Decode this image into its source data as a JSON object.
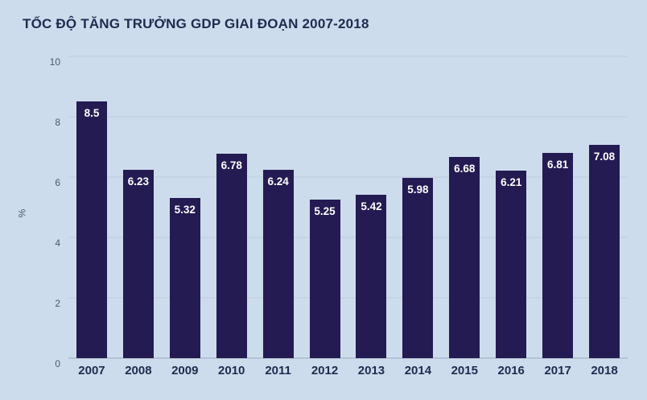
{
  "title": "TỐC ĐỘ TĂNG TRƯỞNG GDP GIAI ĐOẠN 2007-2018",
  "colors": {
    "background": "#cddcec",
    "bar": "#231b52",
    "title": "#1e2b4f",
    "grid": "#bccbdb",
    "axis": "#9aabbd",
    "tick": "#4a5866",
    "bar_label": "#ffffff"
  },
  "chart_data": {
    "type": "bar",
    "title": "TỐC ĐỘ TĂNG TRƯỞNG GDP GIAI ĐOẠN 2007-2018",
    "categories": [
      "2007",
      "2008",
      "2009",
      "2010",
      "2011",
      "2012",
      "2013",
      "2014",
      "2015",
      "2016",
      "2017",
      "2018"
    ],
    "values": [
      8.5,
      6.23,
      5.32,
      6.78,
      6.24,
      5.25,
      5.42,
      5.98,
      6.68,
      6.21,
      6.81,
      7.08
    ],
    "labels": [
      "8.5",
      "6.23",
      "5.32",
      "6.78",
      "6.24",
      "5.25",
      "5.42",
      "5.98",
      "6.68",
      "6.21",
      "6.81",
      "7.08"
    ],
    "xlabel": "",
    "ylabel": "%",
    "ylim": [
      0,
      10
    ],
    "yticks": [
      0,
      2,
      4,
      6,
      8,
      10
    ],
    "grid": true,
    "legend": false
  }
}
